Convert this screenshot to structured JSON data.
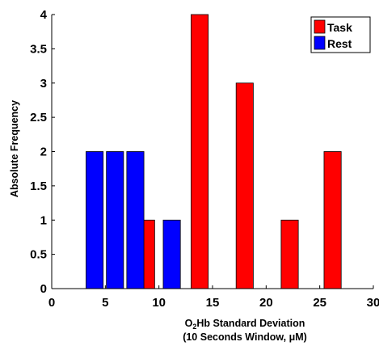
{
  "chart_data": {
    "type": "bar",
    "xlabel_line1_prefix": "O",
    "xlabel_line1_sub": "2",
    "xlabel_line1_suffix": "Hb Standard Deviation",
    "xlabel_line2": "(10 Seconds Window, μM)",
    "ylabel": "Absolute Frequency",
    "xlim": [
      0,
      30
    ],
    "ylim": [
      0,
      4
    ],
    "xticks": [
      "0",
      "5",
      "10",
      "15",
      "20",
      "25",
      "30"
    ],
    "yticks": [
      "0",
      "0.5",
      "1",
      "1.5",
      "2",
      "2.5",
      "3",
      "3.5",
      "4"
    ],
    "bar_width": 1.6,
    "legend_position": "top-right",
    "series": [
      {
        "name": "Task",
        "color": "#ff0000",
        "bars": [
          {
            "x": 8.8,
            "value": 1
          },
          {
            "x": 13.8,
            "value": 4
          },
          {
            "x": 18.0,
            "value": 3
          },
          {
            "x": 22.2,
            "value": 1
          },
          {
            "x": 26.2,
            "value": 2
          }
        ]
      },
      {
        "name": "Rest",
        "color": "#0000ff",
        "bars": [
          {
            "x": 4.0,
            "value": 2
          },
          {
            "x": 5.9,
            "value": 2
          },
          {
            "x": 7.8,
            "value": 2
          },
          {
            "x": 11.2,
            "value": 1
          }
        ]
      }
    ]
  }
}
